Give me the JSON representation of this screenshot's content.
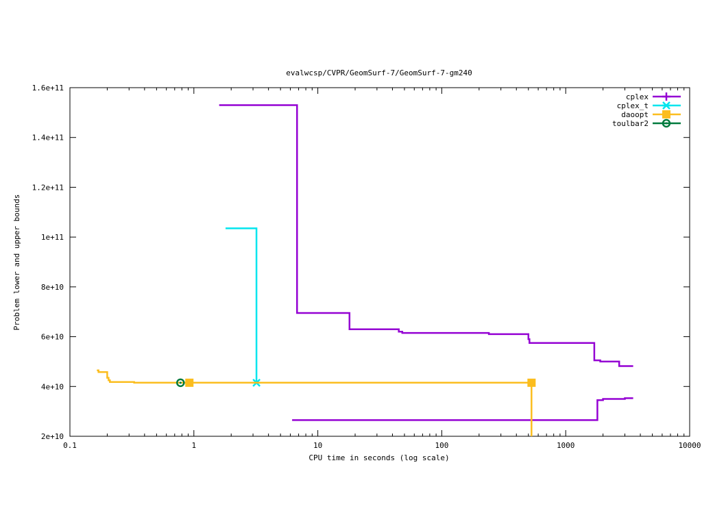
{
  "chart_data": {
    "type": "line",
    "title": "evalwcsp/CVPR/GeomSurf-7/GeomSurf-7-gm240",
    "xlabel": "CPU time in seconds (log scale)",
    "ylabel": "Problem lower and upper bounds",
    "xscale": "log",
    "xlim": [
      0.1,
      10000
    ],
    "ylim": [
      20000000000,
      160000000000
    ],
    "x_ticks": [
      0.1,
      1,
      10,
      100,
      1000,
      10000
    ],
    "x_tick_labels": [
      "0.1",
      "1",
      "10",
      "100",
      "1000",
      "10000"
    ],
    "y_ticks": [
      20000000000,
      40000000000,
      60000000000,
      80000000000,
      100000000000,
      120000000000,
      140000000000,
      160000000000
    ],
    "y_tick_labels": [
      "2e+10",
      "4e+10",
      "6e+10",
      "8e+10",
      "1e+11",
      "1.2e+11",
      "1.4e+11",
      "1.6e+11"
    ],
    "legend_position": "top-right",
    "grid": false,
    "series": [
      {
        "name": "cplex",
        "color": "#9400d3",
        "marker": "plus",
        "segments": [
          {
            "points": [
              [
                1.6,
                153000000000
              ],
              [
                6.8,
                153000000000
              ],
              [
                6.8,
                69500000000
              ],
              [
                18,
                69500000000
              ],
              [
                18,
                63000000000
              ],
              [
                45,
                63000000000
              ],
              [
                45,
                62000000000
              ],
              [
                48,
                62000000000
              ],
              [
                48,
                61500000000
              ],
              [
                240,
                61500000000
              ],
              [
                240,
                61000000000
              ],
              [
                500,
                61000000000
              ],
              [
                500,
                59000000000
              ],
              [
                510,
                59000000000
              ],
              [
                510,
                57500000000
              ],
              [
                1700,
                57500000000
              ],
              [
                1700,
                50500000000
              ],
              [
                1900,
                50500000000
              ],
              [
                1900,
                50000000000
              ],
              [
                2700,
                50000000000
              ],
              [
                2700,
                48200000000
              ],
              [
                3500,
                48200000000
              ]
            ]
          },
          {
            "points": [
              [
                6.2,
                26500000000
              ],
              [
                1800,
                26500000000
              ],
              [
                1800,
                34500000000
              ],
              [
                2000,
                34500000000
              ],
              [
                2000,
                35000000000
              ],
              [
                3000,
                35000000000
              ],
              [
                3000,
                35300000000
              ],
              [
                3500,
                35300000000
              ]
            ]
          }
        ],
        "marker_points": []
      },
      {
        "name": "cplex_t",
        "color": "#00e5ee",
        "marker": "star",
        "segments": [
          {
            "points": [
              [
                1.8,
                103500000000
              ],
              [
                3.2,
                103500000000
              ],
              [
                3.2,
                41500000000
              ]
            ]
          }
        ],
        "marker_points": [
          [
            3.2,
            41500000000
          ]
        ]
      },
      {
        "name": "daoopt",
        "color": "#fbbd1e",
        "marker": "square",
        "segments": [
          {
            "points": [
              [
                0.165,
                46500000000
              ],
              [
                0.17,
                46500000000
              ],
              [
                0.17,
                45800000000
              ],
              [
                0.2,
                45800000000
              ],
              [
                0.2,
                43500000000
              ],
              [
                0.205,
                43500000000
              ],
              [
                0.205,
                42500000000
              ],
              [
                0.21,
                42500000000
              ],
              [
                0.21,
                41800000000
              ],
              [
                0.33,
                41800000000
              ],
              [
                0.33,
                41500000000
              ],
              [
                530,
                41500000000
              ],
              [
                530,
                20000000000
              ]
            ]
          }
        ],
        "marker_points": [
          [
            0.92,
            41500000000
          ],
          [
            530,
            41500000000
          ]
        ]
      },
      {
        "name": "toulbar2",
        "color": "#007a3d",
        "marker": "circle",
        "segments": [],
        "marker_points": [
          [
            0.78,
            41500000000
          ]
        ]
      }
    ]
  }
}
